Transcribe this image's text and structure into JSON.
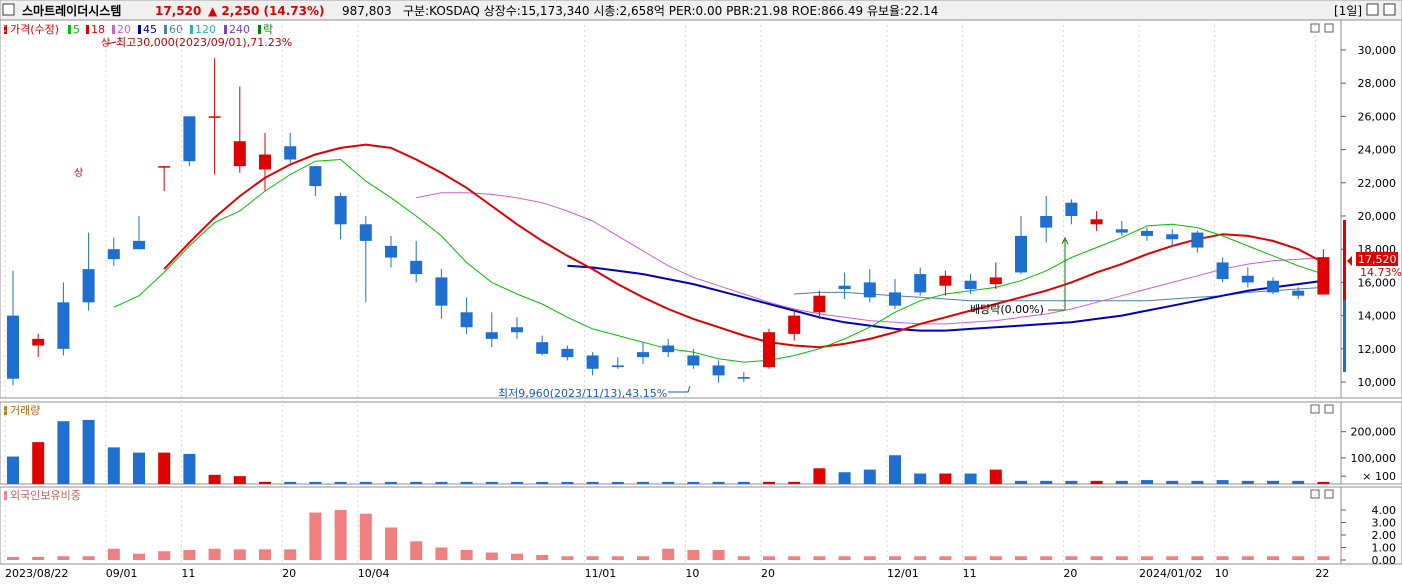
{
  "header": {
    "title": "스마트레이더시스템",
    "price": "17,520",
    "change": "▲ 2,250 (14.73%)",
    "volume": "987,803",
    "info": "구분:KOSDAQ 상장수:15,173,340 시총:2,658억 PER:0.00 PBR:21.98 ROE:866.49 유보율:22.14",
    "period_button": "[1일]",
    "price_color": "#e00000"
  },
  "legend": {
    "main": "가격(수정)",
    "ma": [
      {
        "label": "5",
        "color": "#00c000"
      },
      {
        "label": "18",
        "color": "#e00000"
      },
      {
        "label": "20",
        "color": "#d060d0"
      },
      {
        "label": "45",
        "color": "#0000c0"
      },
      {
        "label": "60",
        "color": "#5080a0"
      },
      {
        "label": "120",
        "color": "#30b0b0"
      },
      {
        "label": "240",
        "color": "#8040c0"
      },
      {
        "label": "락",
        "color": "#008000"
      }
    ],
    "volume": "거래량",
    "foreign": "외국인보유비중"
  },
  "annotations": {
    "high": "최고30,000(2023/09/01),71.23%",
    "low": "최저9,960(2023/11/13),43.15%",
    "dividend": "배당락(0.00%)",
    "limit_up": "상",
    "last_price": "17,520",
    "last_pct": "14.73%"
  },
  "chart_data": {
    "type": "candlestick",
    "x_labels": [
      "2023/08/22",
      "09/01",
      "11",
      "20",
      "10/04",
      "11/01",
      "10",
      "20",
      "12/01",
      "11",
      "20",
      "2024/01/02",
      "10",
      "22"
    ],
    "x_label_index": [
      0,
      4,
      7,
      11,
      14,
      23,
      27,
      30,
      35,
      38,
      42,
      45,
      48,
      52
    ],
    "price_axis": {
      "ticks": [
        "10,000",
        "12,000",
        "14,000",
        "16,000",
        "18,000",
        "20,000",
        "22,000",
        "24,000",
        "26,000",
        "28,000",
        "30,000"
      ],
      "range": [
        9400,
        31200
      ]
    },
    "volume_axis": {
      "ticks": [
        "200,000",
        "100,000",
        "× 100"
      ],
      "range": [
        0,
        260000
      ]
    },
    "foreign_axis": {
      "ticks": [
        "4.00",
        "3.00",
        "2.00",
        "1.00",
        "0.00"
      ],
      "range": [
        0,
        4.8
      ]
    },
    "candles": [
      [
        14000,
        16700,
        9800,
        10200
      ],
      [
        12200,
        12900,
        11500,
        12600
      ],
      [
        14800,
        16000,
        11600,
        12000
      ],
      [
        16800,
        19000,
        14300,
        14800
      ],
      [
        18000,
        18700,
        17000,
        17400
      ],
      [
        18500,
        20000,
        18000,
        18000
      ],
      [
        23000,
        23000,
        21500,
        23000
      ],
      [
        26000,
        26000,
        23000,
        23300
      ],
      [
        26000,
        29500,
        22500,
        26000
      ],
      [
        23000,
        27800,
        22600,
        24500
      ],
      [
        22800,
        25000,
        21500,
        23700
      ],
      [
        24200,
        25000,
        23200,
        23400
      ],
      [
        23000,
        23000,
        21200,
        21800
      ],
      [
        21200,
        21400,
        18600,
        19500
      ],
      [
        19500,
        20000,
        14800,
        18500
      ],
      [
        18200,
        18800,
        16900,
        17500
      ],
      [
        17300,
        18500,
        16000,
        16500
      ],
      [
        16300,
        16800,
        13800,
        14600
      ],
      [
        14200,
        15100,
        12900,
        13300
      ],
      [
        13000,
        14200,
        12100,
        12600
      ],
      [
        13300,
        13900,
        12600,
        13000
      ],
      [
        12400,
        12800,
        11600,
        11700
      ],
      [
        12000,
        12200,
        11300,
        11500
      ],
      [
        11600,
        11800,
        10400,
        10800
      ],
      [
        11000,
        11500,
        10800,
        10900
      ],
      [
        11800,
        12400,
        11100,
        11500
      ],
      [
        12200,
        12600,
        11500,
        11800
      ],
      [
        11600,
        12000,
        10800,
        11000
      ],
      [
        11000,
        11300,
        9960,
        10400
      ],
      [
        10300,
        10600,
        10000,
        10200
      ],
      [
        10900,
        13200,
        10800,
        13000
      ],
      [
        12900,
        14300,
        12500,
        14000
      ],
      [
        14200,
        15500,
        13800,
        15200
      ],
      [
        15800,
        16600,
        15000,
        15600
      ],
      [
        16000,
        16800,
        14800,
        15100
      ],
      [
        15400,
        16200,
        14400,
        14600
      ],
      [
        16500,
        16900,
        15200,
        15400
      ],
      [
        15800,
        16700,
        15200,
        16400
      ],
      [
        16100,
        16500,
        15300,
        15600
      ],
      [
        15900,
        17200,
        15600,
        16300
      ],
      [
        18800,
        20000,
        16500,
        16600
      ],
      [
        20000,
        21200,
        18400,
        19300
      ],
      [
        20800,
        21000,
        19500,
        20000
      ],
      [
        19500,
        20300,
        19100,
        19800
      ],
      [
        19200,
        19700,
        18800,
        19000
      ],
      [
        19100,
        19300,
        18500,
        18800
      ],
      [
        18900,
        19200,
        18200,
        18600
      ],
      [
        19000,
        19100,
        17800,
        18100
      ],
      [
        17200,
        17500,
        16000,
        16200
      ],
      [
        16400,
        16900,
        15700,
        16000
      ],
      [
        16100,
        16300,
        15300,
        15400
      ],
      [
        15500,
        15700,
        15000,
        15200
      ],
      [
        15270,
        18000,
        15270,
        17520
      ]
    ],
    "ma5": [
      null,
      null,
      null,
      null,
      14500,
      15200,
      16600,
      18200,
      19600,
      20300,
      21500,
      22500,
      23300,
      23400,
      22100,
      21100,
      20000,
      18800,
      17200,
      16000,
      15300,
      14700,
      13900,
      13200,
      12800,
      12400,
      12000,
      11800,
      11400,
      11200,
      11300,
      11600,
      12000,
      12600,
      13300,
      14200,
      14900,
      15300,
      15500,
      15700,
      16100,
      16700,
      17500,
      18100,
      18700,
      19400,
      19500,
      19300,
      18800,
      18200,
      17600,
      17000,
      16500
    ],
    "ma18": [
      null,
      null,
      null,
      null,
      null,
      null,
      16800,
      18400,
      19900,
      21200,
      22300,
      23100,
      23700,
      24100,
      24300,
      24100,
      23400,
      22600,
      21700,
      20600,
      19500,
      18500,
      17600,
      16800,
      15900,
      15100,
      14400,
      13800,
      13300,
      12800,
      12400,
      12200,
      12100,
      12300,
      12600,
      13000,
      13500,
      13900,
      14300,
      14700,
      15100,
      15500,
      16000,
      16600,
      17100,
      17700,
      18200,
      18600,
      18900,
      18800,
      18500,
      18000,
      17200
    ],
    "ma45": [
      null,
      null,
      null,
      null,
      null,
      null,
      null,
      null,
      null,
      null,
      null,
      null,
      null,
      null,
      null,
      null,
      null,
      null,
      null,
      null,
      null,
      null,
      17000,
      16900,
      16700,
      16500,
      16200,
      15900,
      15500,
      15100,
      14700,
      14300,
      13900,
      13600,
      13400,
      13200,
      13100,
      13100,
      13200,
      13300,
      13400,
      13500,
      13600,
      13800,
      14000,
      14300,
      14600,
      14900,
      15200,
      15500,
      15700,
      15900,
      16100
    ],
    "ma20": [
      null,
      null,
      null,
      null,
      null,
      null,
      null,
      null,
      null,
      null,
      null,
      null,
      null,
      null,
      null,
      null,
      21100,
      21400,
      21400,
      21300,
      21100,
      20800,
      20300,
      19700,
      18800,
      17900,
      17000,
      16300,
      15800,
      15300,
      14800,
      14400,
      14100,
      13900,
      13700,
      13600,
      13500,
      13500,
      13600,
      13700,
      13900,
      14100,
      14400,
      14800,
      15200,
      15600,
      16000,
      16400,
      16800,
      17100,
      17300,
      17400,
      17500
    ],
    "ma60": [
      null,
      null,
      null,
      null,
      null,
      null,
      null,
      null,
      null,
      null,
      null,
      null,
      null,
      null,
      null,
      null,
      null,
      null,
      null,
      null,
      null,
      null,
      null,
      null,
      null,
      null,
      null,
      null,
      null,
      null,
      null,
      15300,
      15400,
      15400,
      15300,
      15200,
      15100,
      15000,
      14900,
      14900,
      14900,
      14900,
      14900,
      14900,
      14900,
      14900,
      15000,
      15100,
      15200,
      15400,
      15500,
      15600,
      15700
    ],
    "volume": [
      105000,
      160000,
      240000,
      245000,
      140000,
      120000,
      120000,
      115000,
      35000,
      30000,
      8000,
      8000,
      8000,
      8000,
      8000,
      8000,
      8000,
      8000,
      8000,
      8000,
      8000,
      8000,
      8000,
      8000,
      8000,
      8000,
      8000,
      8000,
      8000,
      8000,
      8000,
      8000,
      60000,
      45000,
      55000,
      110000,
      40000,
      40000,
      40000,
      55000,
      12000,
      12000,
      12000,
      12000,
      12000,
      15000,
      12000,
      12000,
      15000,
      12000,
      12000,
      12000,
      8000
    ],
    "foreign_ratio": [
      0.25,
      0.25,
      0.3,
      0.3,
      0.9,
      0.5,
      0.7,
      0.8,
      0.9,
      0.85,
      0.85,
      0.85,
      3.8,
      4.0,
      3.7,
      2.6,
      1.5,
      1.0,
      0.8,
      0.6,
      0.5,
      0.4,
      0.3,
      0.3,
      0.3,
      0.3,
      0.9,
      0.8,
      0.8,
      0.3,
      0.3,
      0.3,
      0.3,
      0.3,
      0.3,
      0.3,
      0.3,
      0.3,
      0.3,
      0.3,
      0.3,
      0.3,
      0.3,
      0.3,
      0.3,
      0.3,
      0.3,
      0.3,
      0.3,
      0.3,
      0.3,
      0.3,
      0.3
    ],
    "colors": {
      "up": "#e00000",
      "down": "#1e6fd0",
      "ma5": "#00c000",
      "ma18": "#e00000",
      "ma20": "#d060d0",
      "ma45": "#0000c0",
      "ma60": "#5080a0",
      "foreign": "#f08080"
    }
  }
}
